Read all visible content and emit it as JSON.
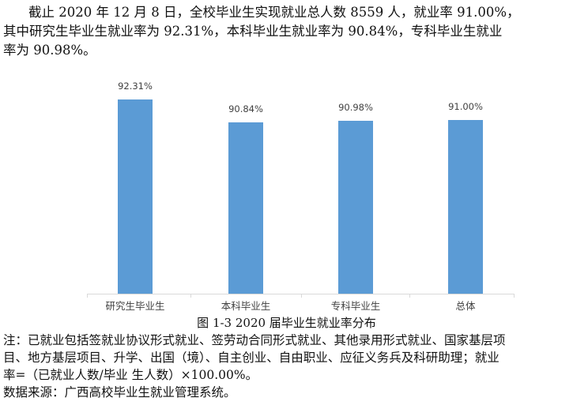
{
  "intro": {
    "lines": [
      "截止 2020 年 12 月 8 日，全校毕业生实现就业总人数 8559 人，就业率 91.00%，",
      "其中研究生毕业生就业率为 92.31%，本科毕业生就业率为 90.84%，专科毕业生就业",
      "率为 90.98%。"
    ]
  },
  "figure": {
    "caption": "图 1-3 2020 届毕业生就业率分布"
  },
  "notes": {
    "lines": [
      "注：已就业包括签就业协议形式就业、签劳动合同形式就业、其他录用形式就业、国家基层项",
      "目、地方基层项目、升学、出国（境）、自主创业、自由职业、应征义务兵及科研助理；就业",
      "率=（已就业人数/毕业 生人数）×100.00%。",
      "数据来源：广西高校毕业生就业管理系统。"
    ]
  },
  "colors": {
    "bar": "#5b9bd5",
    "axis": "#d9d9d9",
    "label_text": "#404040"
  },
  "chart_data": {
    "type": "bar",
    "title": "图 1-3 2020 届毕业生就业率分布",
    "xlabel": "",
    "ylabel": "",
    "categories": [
      "研究生毕业生",
      "本科毕业生",
      "专科毕业生",
      "总体"
    ],
    "values": [
      92.31,
      90.84,
      90.98,
      91.0
    ],
    "data_labels": [
      "92.31%",
      "90.84%",
      "90.98%",
      "91.00%"
    ],
    "ylim": [
      80,
      93
    ],
    "grid": false,
    "legend": null,
    "y_axis_visible": false
  }
}
